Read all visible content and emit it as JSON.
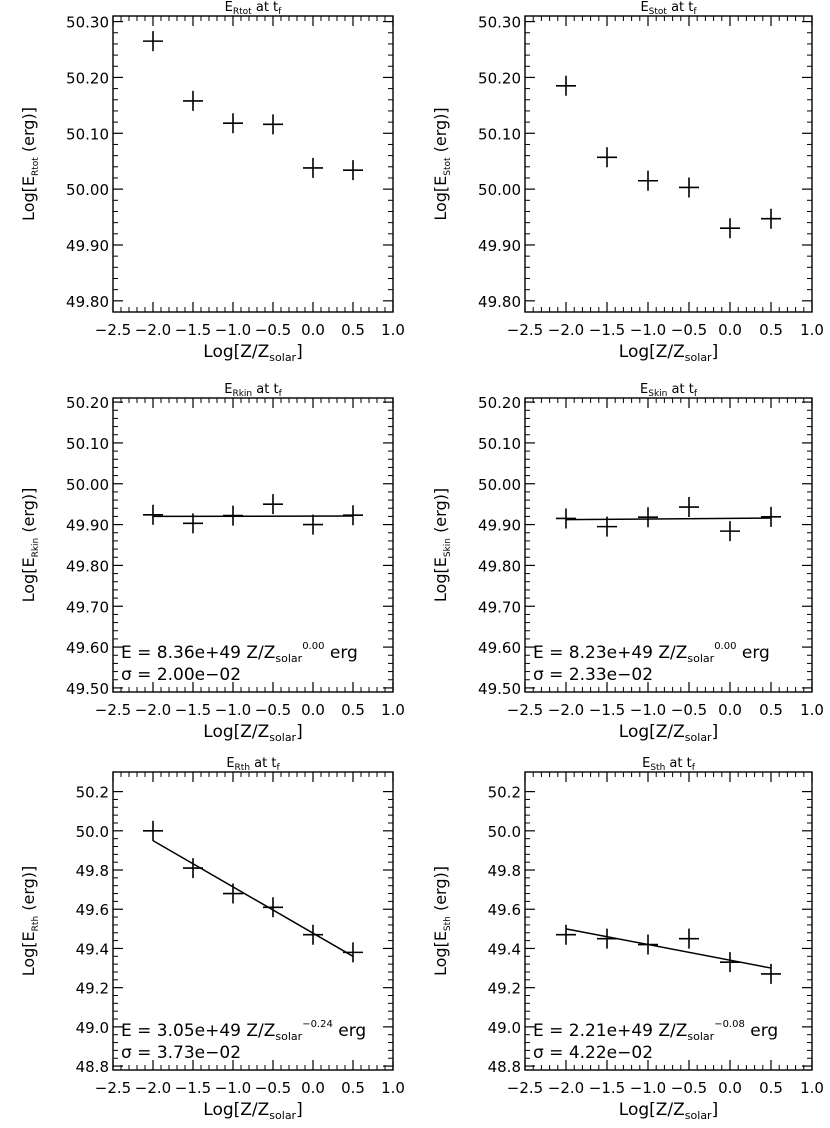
{
  "chart_data": [
    {
      "type": "scatter",
      "title_main": "E",
      "title_sub": "Rtot",
      "title_rest": " at t",
      "title_rest_sub": "f",
      "xlabel_main": "Log[Z/Z",
      "xlabel_sub": "solar",
      "xlabel_end": "]",
      "ylabel_main": "Log[E",
      "ylabel_sub": "Rtot",
      "ylabel_end": "(erg)]",
      "xlim": [
        -2.5,
        1.0
      ],
      "ylim": [
        49.78,
        50.31
      ],
      "xticks": [
        -2.5,
        -2.0,
        -1.5,
        -1.0,
        -0.5,
        0.0,
        0.5,
        1.0
      ],
      "xtick_labels": [
        "−2.5",
        "−2.0",
        "−1.5",
        "−1.0",
        "−0.5",
        "0.0",
        "0.5",
        "1.0"
      ],
      "yticks": [
        49.8,
        49.9,
        50.0,
        50.1,
        50.2,
        50.3
      ],
      "ytick_labels": [
        "49.80",
        "49.90",
        "50.00",
        "50.10",
        "50.20",
        "50.30"
      ],
      "x": [
        -2.0,
        -1.5,
        -1.0,
        -0.5,
        0.0,
        0.5
      ],
      "y": [
        50.265,
        50.158,
        50.118,
        50.116,
        50.038,
        50.034
      ]
    },
    {
      "type": "scatter",
      "title_main": "E",
      "title_sub": "Stot",
      "title_rest": " at t",
      "title_rest_sub": "f",
      "xlabel_main": "Log[Z/Z",
      "xlabel_sub": "solar",
      "xlabel_end": "]",
      "ylabel_main": "Log[E",
      "ylabel_sub": "Stot",
      "ylabel_end": "(erg)]",
      "xlim": [
        -2.5,
        1.0
      ],
      "ylim": [
        49.78,
        50.31
      ],
      "xticks": [
        -2.5,
        -2.0,
        -1.5,
        -1.0,
        -0.5,
        0.0,
        0.5,
        1.0
      ],
      "xtick_labels": [
        "−2.5",
        "−2.0",
        "−1.5",
        "−1.0",
        "−0.5",
        "0.0",
        "0.5",
        "1.0"
      ],
      "yticks": [
        49.8,
        49.9,
        50.0,
        50.1,
        50.2,
        50.3
      ],
      "ytick_labels": [
        "49.80",
        "49.90",
        "50.00",
        "50.10",
        "50.20",
        "50.30"
      ],
      "x": [
        -2.0,
        -1.5,
        -1.0,
        -0.5,
        0.0,
        0.5
      ],
      "y": [
        50.185,
        50.057,
        50.015,
        50.003,
        49.93,
        49.947
      ]
    },
    {
      "type": "scatter",
      "title_main": "E",
      "title_sub": "Rkin",
      "title_rest": " at t",
      "title_rest_sub": "f",
      "xlabel_main": "Log[Z/Z",
      "xlabel_sub": "solar",
      "xlabel_end": "]",
      "ylabel_main": "Log[E",
      "ylabel_sub": "Rkin",
      "ylabel_end": "(erg)]",
      "xlim": [
        -2.5,
        1.0
      ],
      "ylim": [
        49.49,
        50.21
      ],
      "xticks": [
        -2.5,
        -2.0,
        -1.5,
        -1.0,
        -0.5,
        0.0,
        0.5,
        1.0
      ],
      "xtick_labels": [
        "−2.5",
        "−2.0",
        "−1.5",
        "−1.0",
        "−0.5",
        "0.0",
        "0.5",
        "1.0"
      ],
      "yticks": [
        49.5,
        49.6,
        49.7,
        49.8,
        49.9,
        50.0,
        50.1,
        50.2
      ],
      "ytick_labels": [
        "49.50",
        "49.60",
        "49.70",
        "49.80",
        "49.90",
        "50.00",
        "50.10",
        "50.20"
      ],
      "x": [
        -2.0,
        -1.5,
        -1.0,
        -0.5,
        0.0,
        0.5
      ],
      "y": [
        49.924,
        49.903,
        49.922,
        49.95,
        49.9,
        49.923
      ],
      "fit_line": {
        "x": [
          -2.0,
          0.5
        ],
        "y": [
          49.92,
          49.921
        ]
      },
      "annotation": {
        "pre": "E = 8.36e+49  Z/Z",
        "sub": "solar",
        "sup": "0.00",
        "post": " erg",
        "sigma": "σ = 2.00e−02"
      }
    },
    {
      "type": "scatter",
      "title_main": "E",
      "title_sub": "Skin",
      "title_rest": " at t",
      "title_rest_sub": "f",
      "xlabel_main": "Log[Z/Z",
      "xlabel_sub": "solar",
      "xlabel_end": "]",
      "ylabel_main": "Log[E",
      "ylabel_sub": "Skin",
      "ylabel_end": "(erg)]",
      "xlim": [
        -2.5,
        1.0
      ],
      "ylim": [
        49.49,
        50.21
      ],
      "xticks": [
        -2.5,
        -2.0,
        -1.5,
        -1.0,
        -0.5,
        0.0,
        0.5,
        1.0
      ],
      "xtick_labels": [
        "−2.5",
        "−2.0",
        "−1.5",
        "−1.0",
        "−0.5",
        "0.0",
        "0.5",
        "1.0"
      ],
      "yticks": [
        49.5,
        49.6,
        49.7,
        49.8,
        49.9,
        50.0,
        50.1,
        50.2
      ],
      "ytick_labels": [
        "49.50",
        "49.60",
        "49.70",
        "49.80",
        "49.90",
        "50.00",
        "50.10",
        "50.20"
      ],
      "x": [
        -2.0,
        -1.5,
        -1.0,
        -0.5,
        0.0,
        0.5
      ],
      "y": [
        49.915,
        49.895,
        49.918,
        49.943,
        49.884,
        49.919
      ],
      "fit_line": {
        "x": [
          -2.0,
          0.5
        ],
        "y": [
          49.912,
          49.916
        ]
      },
      "annotation": {
        "pre": "E = 8.23e+49  Z/Z",
        "sub": "solar",
        "sup": "0.00",
        "post": " erg",
        "sigma": "σ = 2.33e−02"
      }
    },
    {
      "type": "scatter",
      "title_main": "E",
      "title_sub": "Rth",
      "title_rest": " at t",
      "title_rest_sub": "f",
      "xlabel_main": "Log[Z/Z",
      "xlabel_sub": "solar",
      "xlabel_end": "]",
      "ylabel_main": "Log[E",
      "ylabel_sub": "Rth",
      "ylabel_end": "(erg)]",
      "xlim": [
        -2.5,
        1.0
      ],
      "ylim": [
        48.78,
        50.3
      ],
      "xticks": [
        -2.5,
        -2.0,
        -1.5,
        -1.0,
        -0.5,
        0.0,
        0.5,
        1.0
      ],
      "xtick_labels": [
        "−2.5",
        "−2.0",
        "−1.5",
        "−1.0",
        "−0.5",
        "0.0",
        "0.5",
        "1.0"
      ],
      "yticks": [
        48.8,
        49.0,
        49.2,
        49.4,
        49.6,
        49.8,
        50.0,
        50.2
      ],
      "ytick_labels": [
        "48.8",
        "49.0",
        "49.2",
        "49.4",
        "49.6",
        "49.8",
        "50.0",
        "50.2"
      ],
      "x": [
        -2.0,
        -1.5,
        -1.0,
        -0.5,
        0.0,
        0.5
      ],
      "y": [
        50.0,
        49.81,
        49.68,
        49.61,
        49.47,
        49.38
      ],
      "fit_line": {
        "x": [
          -2.0,
          0.5
        ],
        "y": [
          49.95,
          49.36
        ]
      },
      "annotation": {
        "pre": "E = 3.05e+49  Z/Z",
        "sub": "solar",
        "sup": "−0.24",
        "post": " erg",
        "sigma": "σ = 3.73e−02"
      }
    },
    {
      "type": "scatter",
      "title_main": "E",
      "title_sub": "Sth",
      "title_rest": " at t",
      "title_rest_sub": "f",
      "xlabel_main": "Log[Z/Z",
      "xlabel_sub": "solar",
      "xlabel_end": "]",
      "ylabel_main": "Log[E",
      "ylabel_sub": "Sth",
      "ylabel_end": "(erg)]",
      "xlim": [
        -2.5,
        1.0
      ],
      "ylim": [
        48.78,
        50.3
      ],
      "xticks": [
        -2.5,
        -2.0,
        -1.5,
        -1.0,
        -0.5,
        0.0,
        0.5,
        1.0
      ],
      "xtick_labels": [
        "−2.5",
        "−2.0",
        "−1.5",
        "−1.0",
        "−0.5",
        "0.0",
        "0.5",
        "1.0"
      ],
      "yticks": [
        48.8,
        49.0,
        49.2,
        49.4,
        49.6,
        49.8,
        50.0,
        50.2
      ],
      "ytick_labels": [
        "48.8",
        "49.0",
        "49.2",
        "49.4",
        "49.6",
        "49.8",
        "50.0",
        "50.2"
      ],
      "x": [
        -2.0,
        -1.5,
        -1.0,
        -0.5,
        0.0,
        0.5
      ],
      "y": [
        49.47,
        49.45,
        49.42,
        49.45,
        49.33,
        49.27
      ],
      "fit_line": {
        "x": [
          -2.0,
          0.5
        ],
        "y": [
          49.5,
          49.3
        ]
      },
      "annotation": {
        "pre": "E = 2.21e+49  Z/Z",
        "sub": "solar",
        "sup": "−0.08",
        "post": " erg",
        "sigma": "σ = 4.22e−02"
      }
    }
  ]
}
